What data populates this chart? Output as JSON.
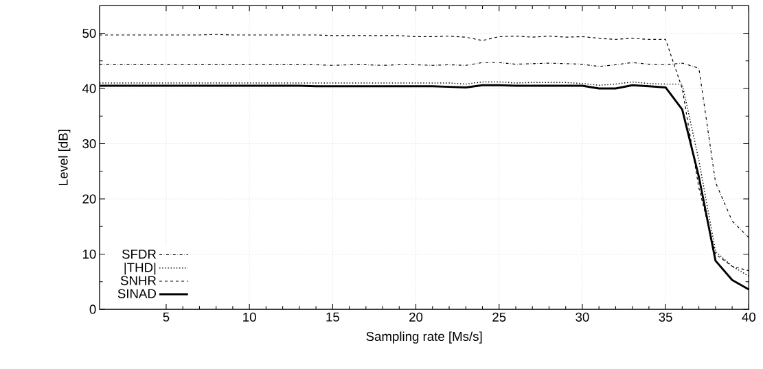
{
  "chart_data": {
    "type": "line",
    "xlabel": "Sampling rate [Ms/s]",
    "ylabel": "Level [dB]",
    "x": [
      1,
      2,
      3,
      4,
      5,
      6,
      7,
      8,
      9,
      10,
      11,
      12,
      13,
      14,
      15,
      16,
      17,
      18,
      19,
      20,
      21,
      22,
      23,
      24,
      25,
      26,
      27,
      28,
      29,
      30,
      31,
      32,
      33,
      34,
      35,
      36,
      37,
      38,
      39,
      40
    ],
    "xlim": [
      1,
      40
    ],
    "xticks": [
      5,
      10,
      15,
      20,
      25,
      30,
      35,
      40
    ],
    "ylim": [
      0,
      55
    ],
    "yticks": [
      0,
      10,
      20,
      30,
      40,
      50
    ],
    "grid": true,
    "legend": "bottom left",
    "series": [
      {
        "name": "SFDR",
        "color": "#000000",
        "line_style": "dashdot",
        "values": [
          44.4,
          44.3,
          44.3,
          44.3,
          44.3,
          44.3,
          44.3,
          44.3,
          44.3,
          44.3,
          44.3,
          44.3,
          44.3,
          44.3,
          44.2,
          44.3,
          44.3,
          44.2,
          44.3,
          44.3,
          44.2,
          44.3,
          44.2,
          44.7,
          44.7,
          44.4,
          44.5,
          44.6,
          44.5,
          44.4,
          44.0,
          44.3,
          44.7,
          44.4,
          44.3,
          44.6,
          43.7,
          23,
          16,
          13
        ]
      },
      {
        "name": "|THD|",
        "color": "#000000",
        "line_style": "dotted",
        "values": [
          41.0,
          41.0,
          41.0,
          41.0,
          41.0,
          41.0,
          41.0,
          41.0,
          41.0,
          41.0,
          41.0,
          41.0,
          41.0,
          41.0,
          41.0,
          41.0,
          41.0,
          41.0,
          41.0,
          41.0,
          41.0,
          41.0,
          40.8,
          41.2,
          41.2,
          41.0,
          41.1,
          41.1,
          41.1,
          40.9,
          40.6,
          40.8,
          41.2,
          40.9,
          40.8,
          40.8,
          27,
          10.5,
          7.8,
          6
        ]
      },
      {
        "name": "SNHR",
        "color": "#000000",
        "line_style": "dashed",
        "values": [
          49.7,
          49.7,
          49.7,
          49.7,
          49.7,
          49.7,
          49.7,
          49.8,
          49.7,
          49.7,
          49.7,
          49.7,
          49.7,
          49.7,
          49.6,
          49.6,
          49.6,
          49.6,
          49.6,
          49.4,
          49.4,
          49.5,
          49.3,
          48.7,
          49.4,
          49.5,
          49.3,
          49.5,
          49.3,
          49.4,
          49.1,
          48.9,
          49.1,
          48.9,
          48.9,
          40,
          22,
          10,
          7.8,
          7
        ]
      },
      {
        "name": "SINAD",
        "color": "#000000",
        "line_style": "solid",
        "values": [
          40.5,
          40.5,
          40.5,
          40.5,
          40.5,
          40.5,
          40.5,
          40.5,
          40.5,
          40.5,
          40.5,
          40.5,
          40.5,
          40.4,
          40.4,
          40.4,
          40.4,
          40.4,
          40.4,
          40.4,
          40.4,
          40.3,
          40.2,
          40.6,
          40.6,
          40.5,
          40.5,
          40.5,
          40.5,
          40.5,
          40.0,
          40.0,
          40.6,
          40.4,
          40.2,
          36.2,
          24,
          8.8,
          5.3,
          3.6
        ]
      }
    ]
  }
}
